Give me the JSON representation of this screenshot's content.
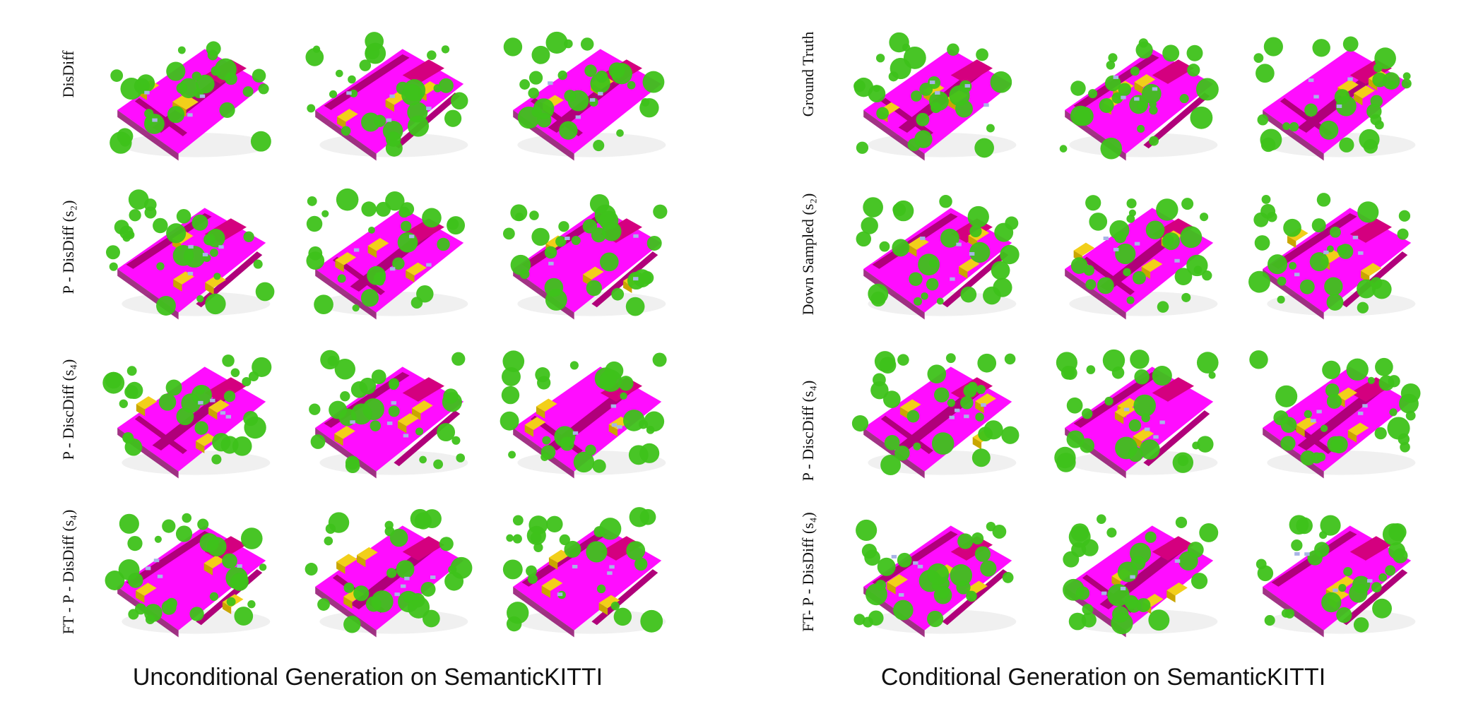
{
  "left_panel": {
    "caption": "Unconditional Generation on SemanticKITTI",
    "row_labels": [
      "DisDiff",
      "P - DisDiff (s₂)",
      "P - DiscDiff (s₄)",
      "FT - P - DisDiff (s₄)"
    ]
  },
  "right_panel": {
    "caption": "Conditional Generation on SemanticKITTI",
    "row_labels": [
      "Ground Truth",
      "Down Sampled (s₂)",
      "P - DiscDiff (s₄)",
      "FT- P - DisDiff (s₄)"
    ]
  },
  "colors": {
    "road": "#ff00ff",
    "sidewalk": "#b0007a",
    "vegetation": "#3ec21a",
    "building": "#f2cf1a",
    "car": "#a8b4e6",
    "parking": "#d4007f"
  }
}
